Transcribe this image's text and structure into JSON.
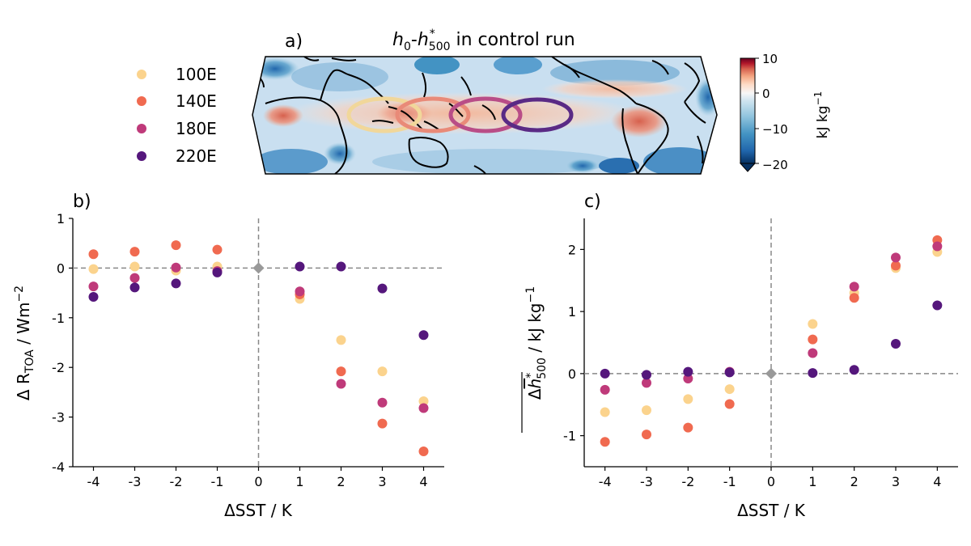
{
  "panel_a": {
    "label": "a)",
    "title": "h0-h*500 in control run",
    "title_parts": {
      "h": "h",
      "sub0": "0",
      "dash": "-",
      "h2": "h",
      "sup": "*",
      "sub500": "500",
      "rest": " in control run"
    },
    "colorbar": {
      "label": "kJ kg⁻¹",
      "label_main": "kJ kg",
      "label_sup": "−1",
      "ticks": [
        "10",
        "0",
        "−10",
        "−20"
      ],
      "vmin": -20,
      "vmax": 10,
      "colormap": "RdBu_r"
    },
    "legend": [
      {
        "label": "100E",
        "color": "#fbd38d"
      },
      {
        "label": "140E",
        "color": "#f06a50"
      },
      {
        "label": "180E",
        "color": "#bf3a7a"
      },
      {
        "label": "220E",
        "color": "#55177c"
      }
    ],
    "ellipse_colors": [
      "#f1d79a",
      "#e98a78",
      "#b94d87",
      "#5a2a85"
    ]
  },
  "chart_data": [
    {
      "type": "scatter",
      "label": "b)",
      "xlabel": "ΔSST / K",
      "ylabel": "Δ R_TOA / Wm⁻²",
      "ylabel_parts": {
        "delta": "Δ R",
        "sub": "TOA",
        "unit": " / Wm",
        "sup": "−2"
      },
      "x": [
        -4,
        -3,
        -2,
        -1,
        0,
        1,
        2,
        3,
        4
      ],
      "xticks": [
        "-4",
        "-3",
        "-2",
        "-1",
        "0",
        "1",
        "2",
        "3",
        "4"
      ],
      "xlim": [
        -4.5,
        4.5
      ],
      "ylim": [
        -4,
        1
      ],
      "yticks": [
        "1",
        "0",
        "-1",
        "-2",
        "-3",
        "-4"
      ],
      "origin_point": {
        "x": 0,
        "y": 0,
        "color": "#999999"
      },
      "series": [
        {
          "name": "100E",
          "color": "#fbd38d",
          "x": [
            -4,
            -3,
            -2,
            -1,
            1,
            2,
            3,
            4
          ],
          "values": [
            -0.02,
            0.03,
            -0.05,
            0.03,
            -0.62,
            -1.45,
            -2.08,
            -2.68
          ]
        },
        {
          "name": "140E",
          "color": "#f06a50",
          "x": [
            -4,
            -3,
            -2,
            -1,
            1,
            2,
            3,
            4
          ],
          "values": [
            0.28,
            0.33,
            0.46,
            0.37,
            -0.53,
            -2.08,
            -3.13,
            -3.69
          ]
        },
        {
          "name": "180E",
          "color": "#bf3a7a",
          "x": [
            -4,
            -3,
            -2,
            -1,
            1,
            2,
            3,
            4
          ],
          "values": [
            -0.37,
            -0.2,
            0.01,
            -0.06,
            -0.47,
            -2.33,
            -2.71,
            -2.82
          ]
        },
        {
          "name": "220E",
          "color": "#55177c",
          "x": [
            -4,
            -3,
            -2,
            -1,
            1,
            2,
            3,
            4
          ],
          "values": [
            -0.58,
            -0.39,
            -0.31,
            -0.09,
            0.03,
            0.03,
            -0.41,
            -1.35
          ]
        }
      ]
    },
    {
      "type": "scatter",
      "label": "c)",
      "xlabel": "ΔSST / K",
      "ylabel": "Δh*500 (overlined) / kJ kg⁻¹",
      "ylabel_parts": {
        "delta": "Δ",
        "h": "h",
        "sup": "*",
        "sub": "500",
        "unit": " / kJ kg",
        "unit_sup": "−1"
      },
      "x": [
        -4,
        -3,
        -2,
        -1,
        0,
        1,
        2,
        3,
        4
      ],
      "xticks": [
        "-4",
        "-3",
        "-2",
        "-1",
        "0",
        "1",
        "2",
        "3",
        "4"
      ],
      "xlim": [
        -4.5,
        4.5
      ],
      "ylim": [
        -1.5,
        2.5
      ],
      "yticks": [
        "2",
        "1",
        "0",
        "-1"
      ],
      "ytick_values": [
        2,
        1,
        0,
        -1
      ],
      "origin_point": {
        "x": 0,
        "y": 0,
        "color": "#999999"
      },
      "series": [
        {
          "name": "100E",
          "color": "#fbd38d",
          "x": [
            -4,
            -3,
            -2,
            -1,
            1,
            2,
            3,
            4
          ],
          "values": [
            -0.62,
            -0.59,
            -0.41,
            -0.25,
            0.8,
            1.3,
            1.7,
            1.96
          ]
        },
        {
          "name": "140E",
          "color": "#f06a50",
          "x": [
            -4,
            -3,
            -2,
            -1,
            1,
            2,
            3,
            4
          ],
          "values": [
            -1.1,
            -0.98,
            -0.87,
            -0.49,
            0.55,
            1.22,
            1.74,
            2.15
          ]
        },
        {
          "name": "180E",
          "color": "#bf3a7a",
          "x": [
            -4,
            -3,
            -2,
            -1,
            1,
            2,
            3,
            4
          ],
          "values": [
            -0.26,
            -0.15,
            -0.08,
            0.03,
            0.33,
            1.4,
            1.87,
            2.05
          ]
        },
        {
          "name": "220E",
          "color": "#55177c",
          "x": [
            -4,
            -3,
            -2,
            -1,
            1,
            2,
            3,
            4
          ],
          "values": [
            0.0,
            -0.02,
            0.03,
            0.02,
            0.01,
            0.06,
            0.48,
            1.1
          ]
        }
      ]
    }
  ]
}
